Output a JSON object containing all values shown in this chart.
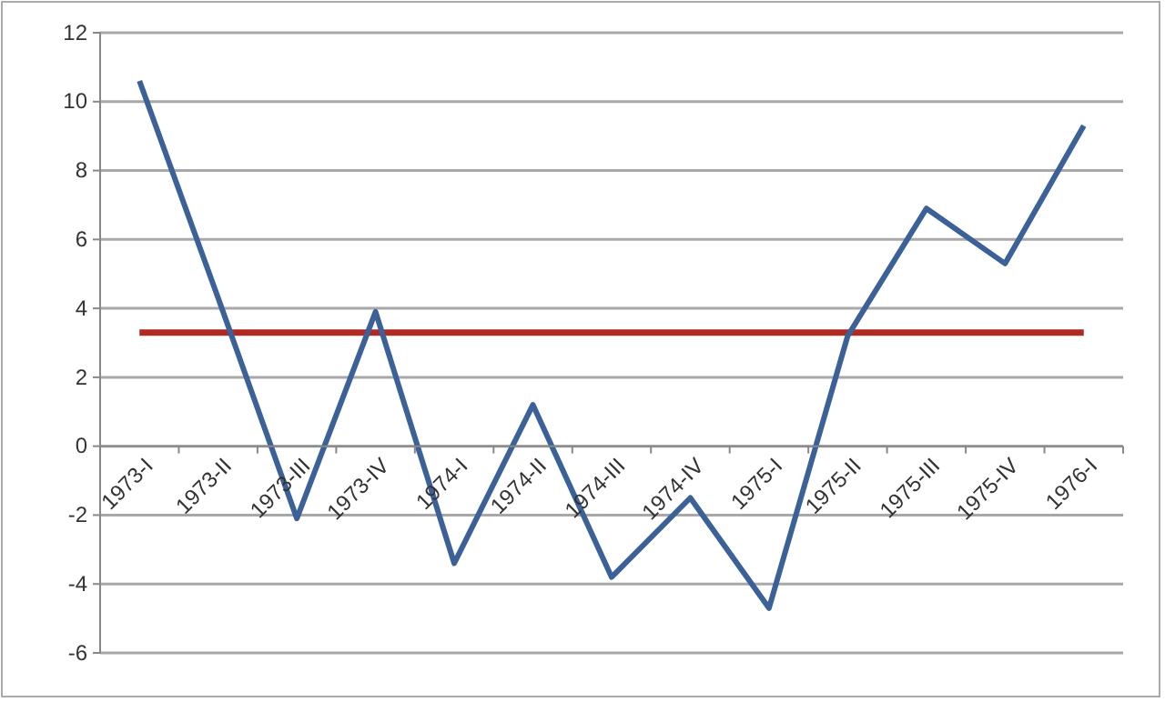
{
  "chart_data": {
    "type": "line",
    "categories": [
      "1973-I",
      "1973-II",
      "1973-III",
      "1973-IV",
      "1974-I",
      "1974-II",
      "1974-III",
      "1974-IV",
      "1975-I",
      "1975-II",
      "1975-III",
      "1975-IV",
      "1976-I"
    ],
    "series": [
      {
        "color": "#3c6199",
        "values": [
          10.6,
          4.3,
          -2.1,
          3.9,
          -3.4,
          1.2,
          -3.8,
          -1.5,
          -4.7,
          3.2,
          6.9,
          5.3,
          9.3
        ]
      }
    ],
    "ylim": [
      -6,
      12
    ],
    "yticks": [
      -6,
      -4,
      -2,
      0,
      2,
      4,
      6,
      8,
      10,
      12
    ],
    "grid": "y",
    "marker": "none",
    "ref_lines": [
      {
        "axis": "y",
        "value": 3.3,
        "color": "#b02a22"
      }
    ]
  }
}
